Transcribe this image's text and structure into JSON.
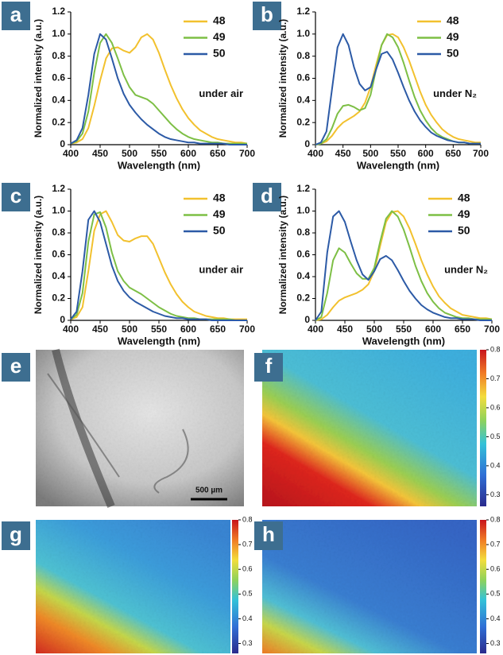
{
  "chart_data": [
    {
      "type": "line",
      "label": "a",
      "x_label": "Wavelength (nm)",
      "y_label": "Normalized intensity (a.u.)",
      "annotation": "under air",
      "x": [
        400,
        410,
        420,
        430,
        440,
        450,
        460,
        470,
        480,
        490,
        500,
        510,
        520,
        530,
        540,
        550,
        560,
        570,
        580,
        590,
        600,
        610,
        620,
        630,
        640,
        650,
        660,
        670,
        680,
        690,
        700
      ],
      "xlim": [
        400,
        700
      ],
      "ylim": [
        0,
        1.2
      ],
      "xticks": [
        400,
        450,
        500,
        550,
        600,
        650,
        700
      ],
      "yticks": [
        0,
        0.2,
        0.4,
        0.6,
        0.8,
        {
          "value": 1,
          "label": "1.0"
        },
        1.2
      ],
      "series": [
        {
          "name": "48",
          "color": "#f2c12e",
          "values": [
            0.01,
            0.02,
            0.05,
            0.15,
            0.35,
            0.58,
            0.78,
            0.87,
            0.88,
            0.85,
            0.83,
            0.88,
            0.97,
            1.0,
            0.95,
            0.83,
            0.68,
            0.54,
            0.42,
            0.32,
            0.24,
            0.18,
            0.13,
            0.1,
            0.07,
            0.05,
            0.04,
            0.03,
            0.02,
            0.02,
            0.01
          ]
        },
        {
          "name": "49",
          "color": "#7dbf45",
          "values": [
            0.01,
            0.03,
            0.1,
            0.3,
            0.65,
            0.92,
            1.0,
            0.92,
            0.78,
            0.63,
            0.52,
            0.45,
            0.43,
            0.41,
            0.37,
            0.31,
            0.25,
            0.19,
            0.14,
            0.1,
            0.07,
            0.05,
            0.04,
            0.03,
            0.02,
            0.02,
            0.01,
            0.01,
            0.01,
            0.01,
            0.01
          ]
        },
        {
          "name": "50",
          "color": "#2c5aa6",
          "values": [
            0.01,
            0.04,
            0.15,
            0.45,
            0.82,
            1.0,
            0.95,
            0.78,
            0.6,
            0.46,
            0.36,
            0.29,
            0.23,
            0.18,
            0.14,
            0.1,
            0.07,
            0.05,
            0.04,
            0.03,
            0.02,
            0.02,
            0.01,
            0.01,
            0.01,
            0.01,
            0.01,
            0,
            0,
            0,
            0
          ]
        }
      ]
    },
    {
      "type": "line",
      "label": "b",
      "x_label": "Wavelength (nm)",
      "y_label": "Normalized intensity (a.u.)",
      "annotation": "under N₂",
      "x": [
        400,
        410,
        420,
        430,
        440,
        450,
        460,
        470,
        480,
        490,
        500,
        510,
        520,
        530,
        540,
        550,
        560,
        570,
        580,
        590,
        600,
        610,
        620,
        630,
        640,
        650,
        660,
        670,
        680,
        690,
        700
      ],
      "xlim": [
        400,
        700
      ],
      "ylim": [
        0,
        1.2
      ],
      "xticks": [
        400,
        450,
        500,
        550,
        600,
        650,
        700
      ],
      "yticks": [
        0,
        0.2,
        0.4,
        0.6,
        0.8,
        {
          "value": 1,
          "label": "1.0"
        },
        1.2
      ],
      "series": [
        {
          "name": "48",
          "color": "#f2c12e",
          "values": [
            0,
            0.01,
            0.03,
            0.08,
            0.15,
            0.2,
            0.23,
            0.26,
            0.3,
            0.38,
            0.52,
            0.72,
            0.9,
            0.99,
            1.0,
            0.97,
            0.88,
            0.76,
            0.62,
            0.48,
            0.36,
            0.27,
            0.2,
            0.14,
            0.1,
            0.07,
            0.05,
            0.04,
            0.03,
            0.02,
            0.02
          ]
        },
        {
          "name": "49",
          "color": "#7dbf45",
          "values": [
            0,
            0.01,
            0.05,
            0.15,
            0.28,
            0.35,
            0.36,
            0.34,
            0.31,
            0.33,
            0.45,
            0.68,
            0.9,
            1.0,
            0.97,
            0.88,
            0.74,
            0.58,
            0.43,
            0.31,
            0.22,
            0.15,
            0.1,
            0.07,
            0.05,
            0.03,
            0.02,
            0.02,
            0.01,
            0.01,
            0.01
          ]
        },
        {
          "name": "50",
          "color": "#2c5aa6",
          "values": [
            0,
            0.02,
            0.12,
            0.5,
            0.88,
            1.0,
            0.9,
            0.7,
            0.55,
            0.49,
            0.52,
            0.68,
            0.82,
            0.84,
            0.77,
            0.65,
            0.52,
            0.4,
            0.3,
            0.22,
            0.16,
            0.11,
            0.08,
            0.06,
            0.04,
            0.03,
            0.02,
            0.02,
            0.01,
            0.01,
            0.01
          ]
        }
      ]
    },
    {
      "type": "line",
      "label": "c",
      "x_label": "Wavelength (nm)",
      "y_label": "Normalized intensity (a.u.)",
      "annotation": "under air",
      "x": [
        400,
        410,
        420,
        430,
        440,
        450,
        460,
        470,
        480,
        490,
        500,
        510,
        520,
        530,
        540,
        550,
        560,
        570,
        580,
        590,
        600,
        610,
        620,
        630,
        640,
        650,
        660,
        670,
        680,
        690,
        700
      ],
      "xlim": [
        400,
        700
      ],
      "ylim": [
        0,
        1.2
      ],
      "xticks": [
        400,
        450,
        500,
        550,
        600,
        650,
        700
      ],
      "yticks": [
        0,
        0.2,
        0.4,
        0.6,
        0.8,
        {
          "value": 1,
          "label": "1.0"
        },
        1.2
      ],
      "series": [
        {
          "name": "48",
          "color": "#f2c12e",
          "values": [
            0.01,
            0.03,
            0.12,
            0.45,
            0.82,
            0.97,
            1.0,
            0.9,
            0.78,
            0.73,
            0.72,
            0.75,
            0.77,
            0.77,
            0.7,
            0.57,
            0.44,
            0.33,
            0.24,
            0.17,
            0.12,
            0.08,
            0.06,
            0.04,
            0.03,
            0.02,
            0.02,
            0.01,
            0.01,
            0.01,
            0.01
          ]
        },
        {
          "name": "49",
          "color": "#7dbf45",
          "values": [
            0.01,
            0.05,
            0.25,
            0.72,
            0.97,
            0.99,
            0.85,
            0.62,
            0.45,
            0.36,
            0.3,
            0.27,
            0.24,
            0.2,
            0.16,
            0.12,
            0.09,
            0.06,
            0.04,
            0.03,
            0.02,
            0.02,
            0.01,
            0.01,
            0.01,
            0.01,
            0.01,
            0.01,
            0,
            0,
            0
          ]
        },
        {
          "name": "50",
          "color": "#2c5aa6",
          "values": [
            0.01,
            0.08,
            0.45,
            0.92,
            1.0,
            0.9,
            0.7,
            0.5,
            0.36,
            0.27,
            0.21,
            0.17,
            0.14,
            0.11,
            0.08,
            0.06,
            0.04,
            0.03,
            0.02,
            0.02,
            0.01,
            0.01,
            0.01,
            0.01,
            0,
            0,
            0,
            0,
            0,
            0,
            0
          ]
        }
      ]
    },
    {
      "type": "line",
      "label": "d",
      "x_label": "Wavelength (nm)",
      "y_label": "Normalized intensity (a.u.)",
      "annotation": "under N₂",
      "x": [
        400,
        410,
        420,
        430,
        440,
        450,
        460,
        470,
        480,
        490,
        500,
        510,
        520,
        530,
        540,
        550,
        560,
        570,
        580,
        590,
        600,
        610,
        620,
        630,
        640,
        650,
        660,
        670,
        680,
        690,
        700
      ],
      "xlim": [
        400,
        700
      ],
      "ylim": [
        0,
        1.2
      ],
      "xticks": [
        400,
        450,
        500,
        550,
        600,
        650,
        700
      ],
      "yticks": [
        0,
        0.2,
        0.4,
        0.6,
        0.8,
        {
          "value": 1,
          "label": "1.0"
        },
        1.2
      ],
      "series": [
        {
          "name": "48",
          "color": "#f2c12e",
          "values": [
            0,
            0.01,
            0.05,
            0.12,
            0.18,
            0.21,
            0.23,
            0.25,
            0.28,
            0.33,
            0.45,
            0.68,
            0.9,
            0.99,
            1.0,
            0.95,
            0.84,
            0.7,
            0.55,
            0.42,
            0.31,
            0.22,
            0.16,
            0.11,
            0.08,
            0.05,
            0.04,
            0.03,
            0.02,
            0.02,
            0.01
          ]
        },
        {
          "name": "49",
          "color": "#7dbf45",
          "values": [
            0,
            0.03,
            0.25,
            0.55,
            0.66,
            0.62,
            0.52,
            0.43,
            0.38,
            0.38,
            0.48,
            0.72,
            0.93,
            1.0,
            0.95,
            0.83,
            0.67,
            0.5,
            0.36,
            0.25,
            0.17,
            0.11,
            0.07,
            0.05,
            0.03,
            0.02,
            0.02,
            0.01,
            0.01,
            0.01,
            0.01
          ]
        },
        {
          "name": "50",
          "color": "#2c5aa6",
          "values": [
            0,
            0.08,
            0.62,
            0.95,
            1.0,
            0.9,
            0.72,
            0.55,
            0.42,
            0.37,
            0.45,
            0.56,
            0.59,
            0.55,
            0.46,
            0.36,
            0.27,
            0.2,
            0.14,
            0.1,
            0.07,
            0.05,
            0.03,
            0.02,
            0.02,
            0.01,
            0.01,
            0.01,
            0,
            0,
            0
          ]
        }
      ]
    }
  ],
  "panels": [
    {
      "label": "e",
      "scale_bar": "500 µm"
    },
    {
      "label": "f",
      "colorbar": {
        "lim": [
          0.26,
          0.8
        ],
        "ticks": [
          0.3,
          0.4,
          0.5,
          0.6,
          0.7,
          0.8
        ]
      }
    },
    {
      "label": "g",
      "colorbar": {
        "lim": [
          0.26,
          0.8
        ],
        "ticks": [
          0.3,
          0.4,
          0.5,
          0.6,
          0.7,
          0.8
        ]
      }
    },
    {
      "label": "h",
      "colorbar": {
        "lim": [
          0.26,
          0.8
        ],
        "ticks": [
          0.3,
          0.4,
          0.5,
          0.6,
          0.7,
          0.8
        ]
      }
    }
  ]
}
